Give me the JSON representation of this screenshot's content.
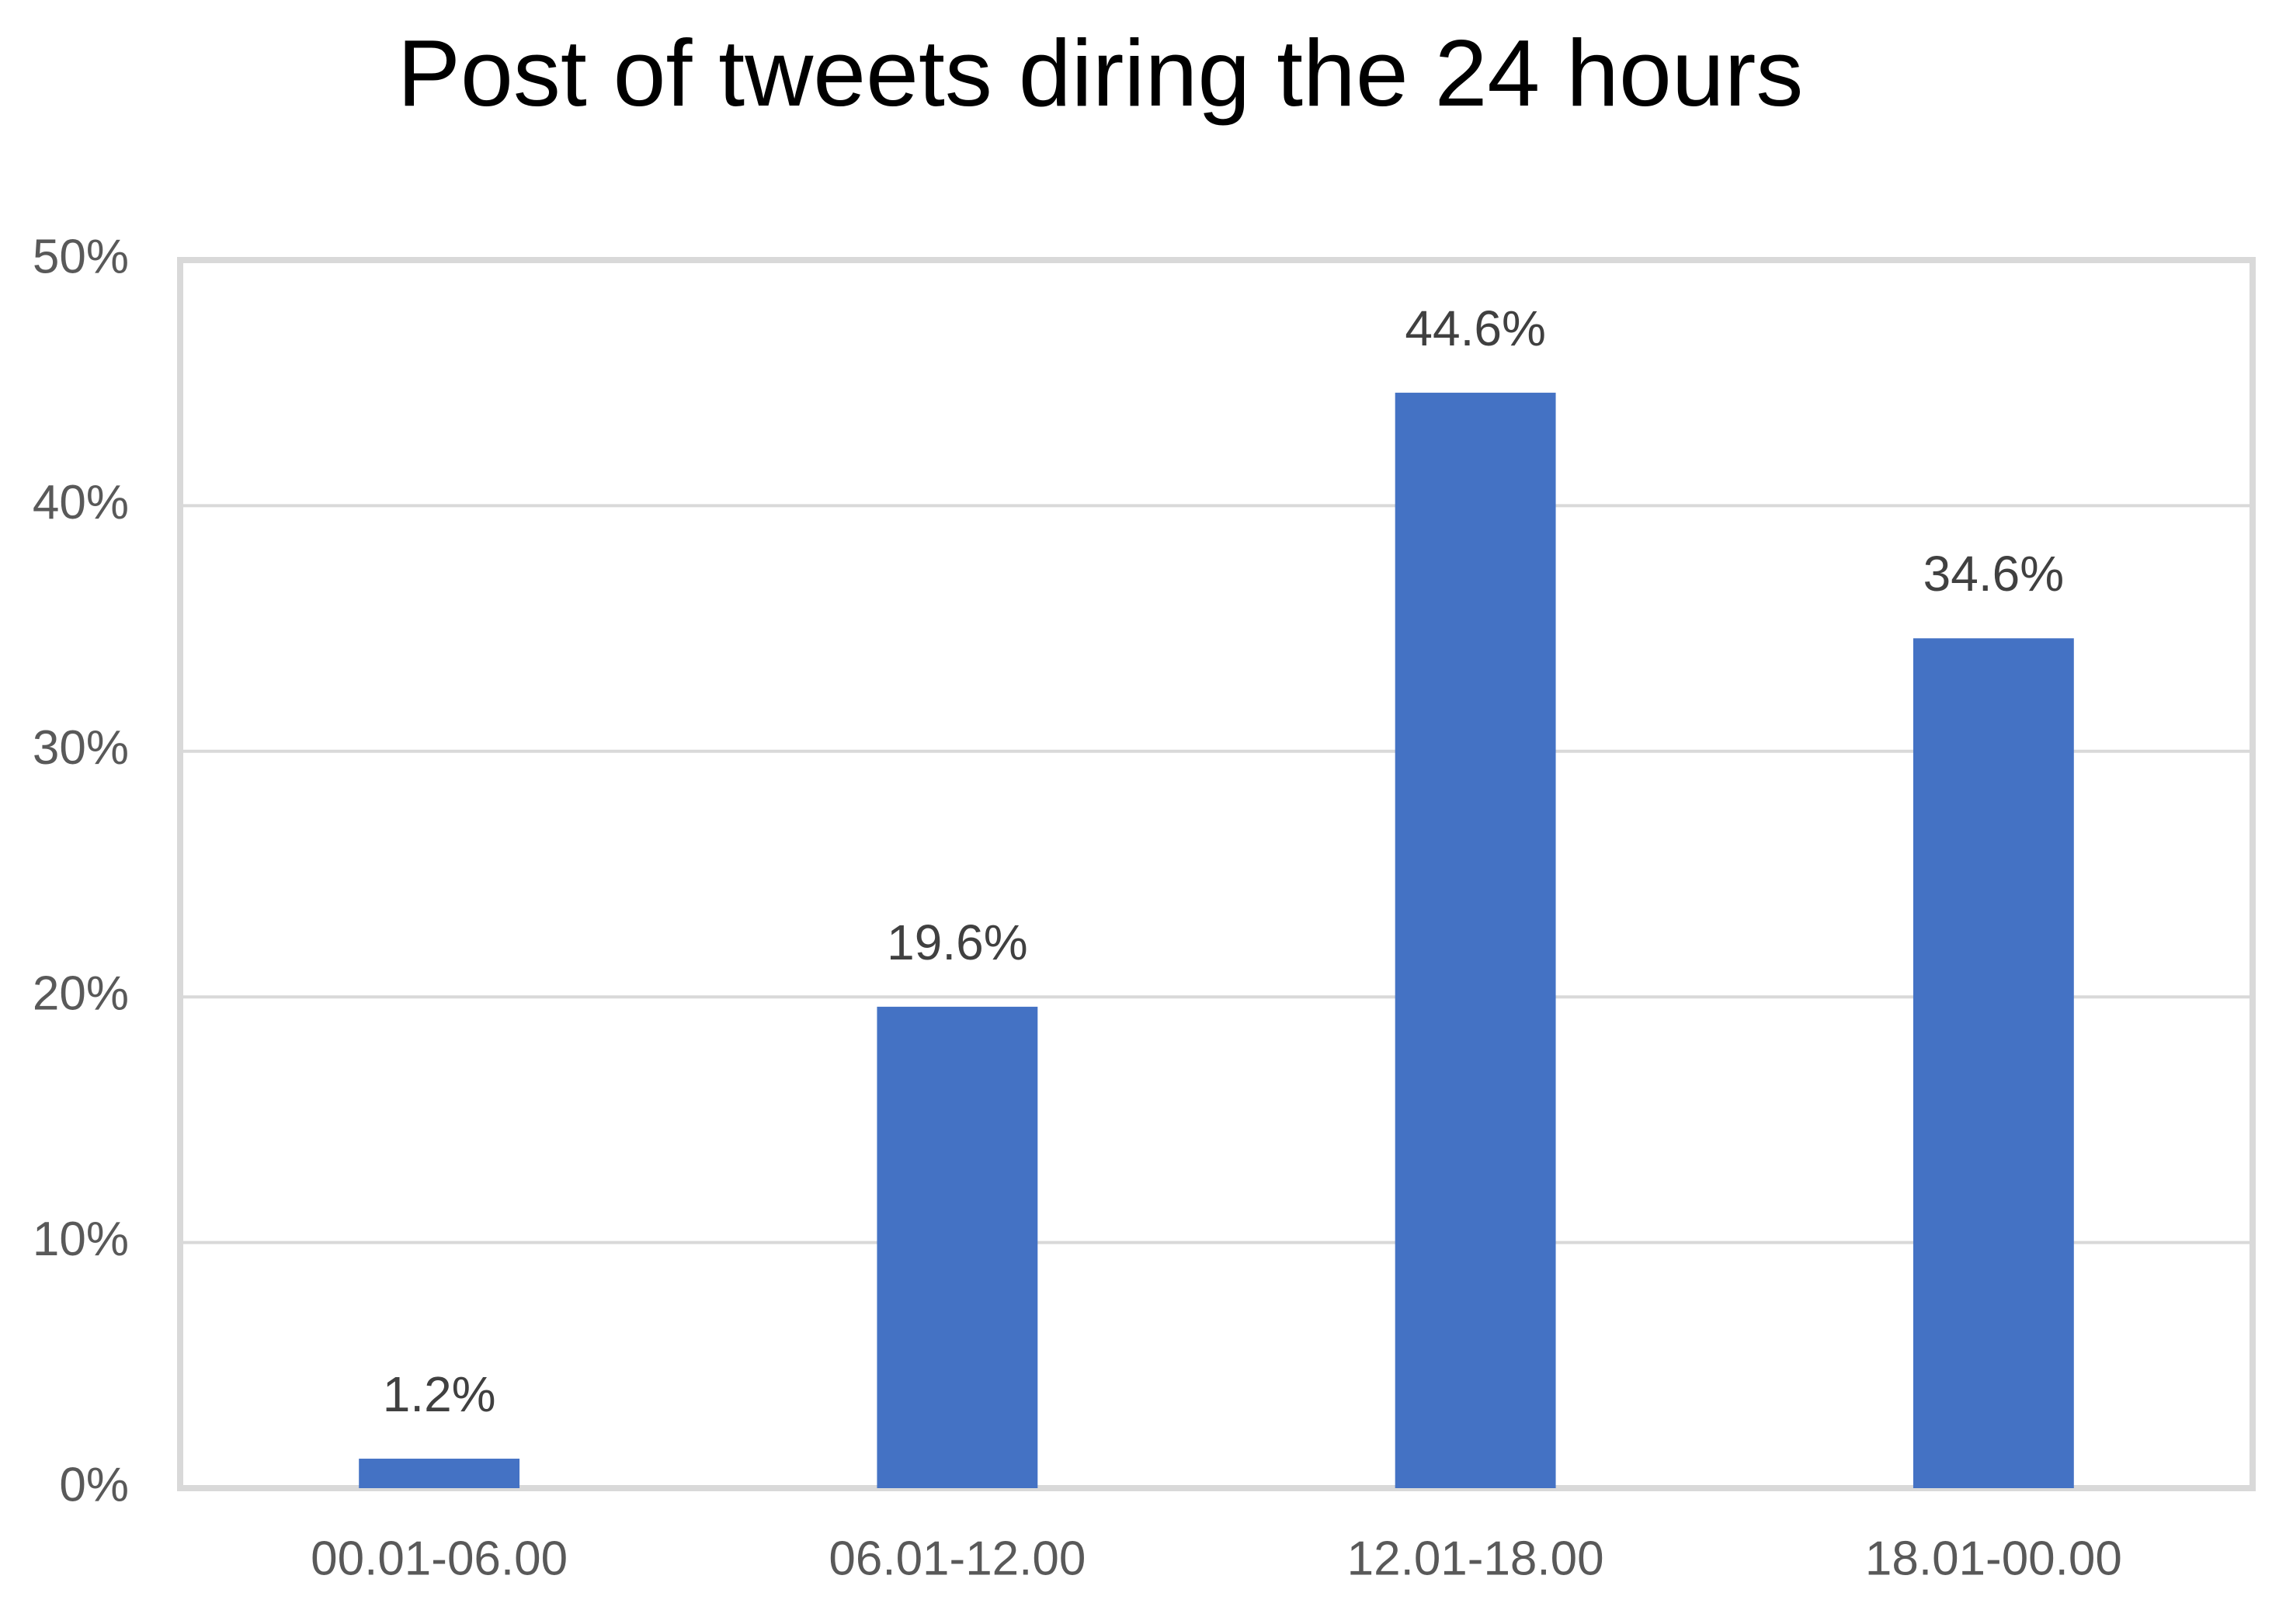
{
  "chart_data": {
    "type": "bar",
    "title": "Post of tweets diring the 24 hours",
    "categories": [
      "00.01-06.00",
      "06.01-12.00",
      "12.01-18.00",
      "18.01-00.00"
    ],
    "values": [
      1.2,
      19.6,
      44.6,
      34.6
    ],
    "value_labels": [
      "1.2%",
      "19.6%",
      "44.6%",
      "34.6%"
    ],
    "color": "#4472c4",
    "ylim": [
      0,
      50
    ],
    "yticks": [
      {
        "value": 0,
        "label": "0%"
      },
      {
        "value": 10,
        "label": "10%"
      },
      {
        "value": 20,
        "label": "20%"
      },
      {
        "value": 30,
        "label": "30%"
      },
      {
        "value": 40,
        "label": "40%"
      },
      {
        "value": 50,
        "label": "50%"
      }
    ],
    "grid": true
  }
}
